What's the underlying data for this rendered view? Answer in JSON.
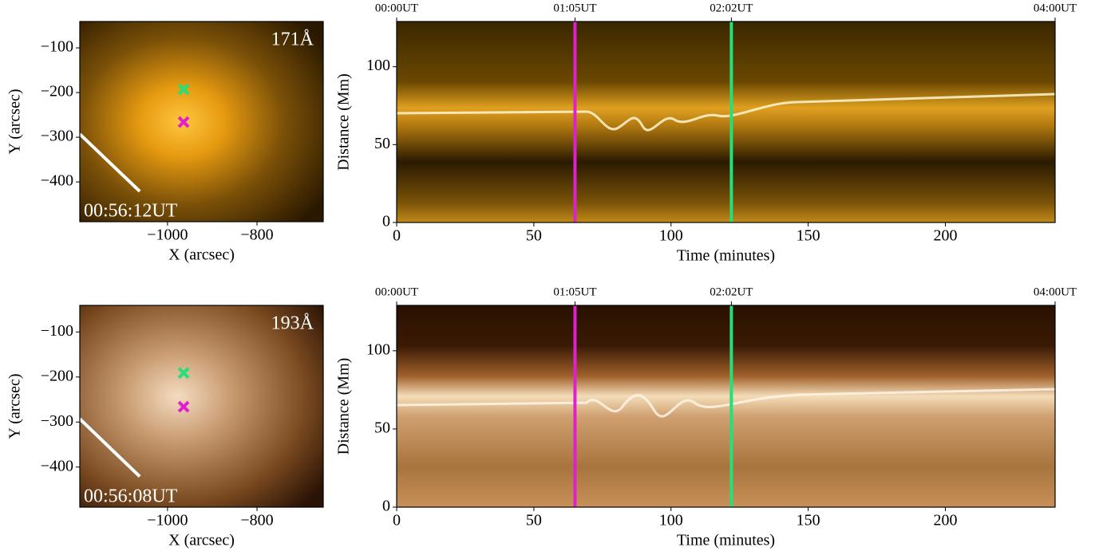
{
  "chart_data": [
    {
      "type": "image",
      "xlabel": "X (arcsec)",
      "ylabel": "Y (arcsec)",
      "xlim": [
        -1196,
        -652
      ],
      "ylim": [
        -489,
        -41
      ],
      "xticks": [
        {
          "value": -1000,
          "label": "−1000"
        },
        {
          "value": -800,
          "label": "−800"
        }
      ],
      "yticks": [
        {
          "value": -100,
          "label": "−100"
        },
        {
          "value": -200,
          "label": "−200"
        },
        {
          "value": -300,
          "label": "−300"
        },
        {
          "value": -400,
          "label": "−400"
        }
      ],
      "annotations": {
        "wavelength": "171Å",
        "time": "00:56:12UT"
      },
      "markers": [
        {
          "x": -964,
          "y": -193,
          "color": "#22e07a"
        },
        {
          "x": -964,
          "y": -266,
          "color": "#e020d0"
        }
      ],
      "slit": {
        "x": [
          -1196,
          -1062
        ],
        "y": [
          -293,
          -421
        ],
        "color": "#ffffff"
      }
    },
    {
      "type": "time-distance",
      "xlabel": "Time (minutes)",
      "ylabel": "Distance (Mm)",
      "xlim": [
        0,
        240
      ],
      "ylim": [
        0,
        129
      ],
      "xticks": [
        0,
        50,
        100,
        150,
        200
      ],
      "yticks": [
        0,
        50,
        100
      ],
      "top_ticks": [
        {
          "value": 0,
          "label": "00:00UT"
        },
        {
          "value": 65,
          "label": "01:05UT"
        },
        {
          "value": 122,
          "label": "02:02UT"
        },
        {
          "value": 240,
          "label": "04:00UT"
        }
      ],
      "vlines": [
        {
          "x": 65,
          "color": "#e020d0"
        },
        {
          "x": 122,
          "color": "#22e07a"
        }
      ]
    },
    {
      "type": "image",
      "xlabel": "X (arcsec)",
      "ylabel": "Y (arcsec)",
      "xlim": [
        -1196,
        -652
      ],
      "ylim": [
        -489,
        -41
      ],
      "xticks": [
        {
          "value": -1000,
          "label": "−1000"
        },
        {
          "value": -800,
          "label": "−800"
        }
      ],
      "yticks": [
        {
          "value": -100,
          "label": "−100"
        },
        {
          "value": -200,
          "label": "−200"
        },
        {
          "value": -300,
          "label": "−300"
        },
        {
          "value": -400,
          "label": "−400"
        }
      ],
      "annotations": {
        "wavelength": "193Å",
        "time": "00:56:08UT"
      },
      "markers": [
        {
          "x": -964,
          "y": -191,
          "color": "#22e07a"
        },
        {
          "x": -964,
          "y": -266,
          "color": "#e020d0"
        }
      ],
      "slit": {
        "x": [
          -1196,
          -1062
        ],
        "y": [
          -293,
          -421
        ],
        "color": "#ffffff"
      }
    },
    {
      "type": "time-distance",
      "xlabel": "Time (minutes)",
      "ylabel": "Distance (Mm)",
      "xlim": [
        0,
        240
      ],
      "ylim": [
        0,
        129
      ],
      "xticks": [
        0,
        50,
        100,
        150,
        200
      ],
      "yticks": [
        0,
        50,
        100
      ],
      "top_ticks": [
        {
          "value": 0,
          "label": "00:00UT"
        },
        {
          "value": 65,
          "label": "01:05UT"
        },
        {
          "value": 122,
          "label": "02:02UT"
        },
        {
          "value": 240,
          "label": "04:00UT"
        }
      ],
      "vlines": [
        {
          "x": 65,
          "color": "#e020d0"
        },
        {
          "x": 122,
          "color": "#22e07a"
        }
      ]
    }
  ]
}
